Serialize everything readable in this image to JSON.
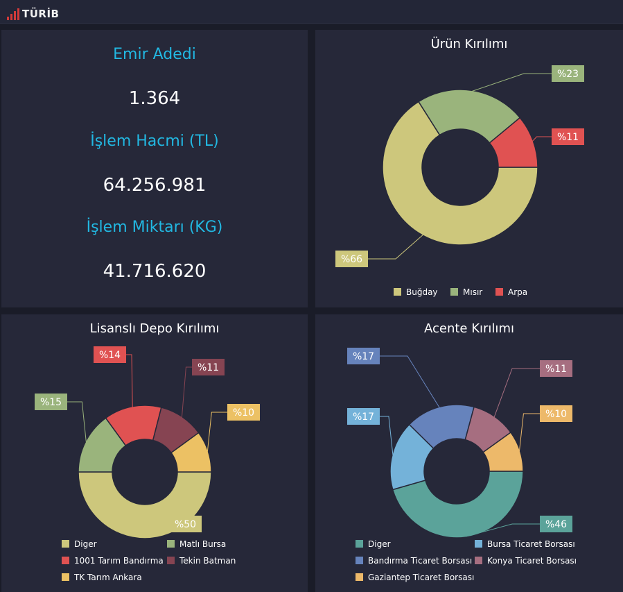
{
  "header": {
    "logo_text": "TÜRİB"
  },
  "stats": [
    {
      "label": "Emir Adedi",
      "value": "1.364"
    },
    {
      "label": "İşlem Hacmi (TL)",
      "value": "64.256.981"
    },
    {
      "label": "İşlem Miktarı (KG)",
      "value": "41.716.620"
    }
  ],
  "chart_data": [
    {
      "type": "pie",
      "title": "Ürün Kırılımı",
      "categories": [
        "Buğday",
        "Mısır",
        "Arpa"
      ],
      "values": [
        66,
        23,
        11
      ],
      "labels": [
        "%66",
        "%23",
        "%11"
      ],
      "colors": [
        "#cdc77c",
        "#9ab47c",
        "#e05252"
      ],
      "legend": "bottom"
    },
    {
      "type": "pie",
      "title": "Lisanslı Depo Kırılımı",
      "categories": [
        "Diger",
        "Matlı Bursa",
        "1001 Tarım Bandırma",
        "Tekin Batman",
        "TK Tarım Ankara"
      ],
      "values": [
        50,
        15,
        14,
        11,
        10
      ],
      "labels": [
        "%50",
        "%15",
        "%14",
        "%11",
        "%10"
      ],
      "colors": [
        "#cdc77c",
        "#9ab47c",
        "#e05252",
        "#864452",
        "#ecc164"
      ],
      "legend": "bottom"
    },
    {
      "type": "pie",
      "title": "Acente Kırılımı",
      "categories": [
        "Diger",
        "Bursa Ticaret Borsası",
        "Bandırma Ticaret Borsası",
        "Konya Ticaret Borsası",
        "Gaziantep Ticaret Borsası"
      ],
      "values": [
        46,
        17,
        17,
        11,
        10
      ],
      "labels": [
        "%46",
        "%17",
        "%17",
        "%11",
        "%10"
      ],
      "colors": [
        "#5ba39a",
        "#74b2d9",
        "#6683bc",
        "#a66e80",
        "#edb96a"
      ],
      "legend": "bottom"
    }
  ]
}
